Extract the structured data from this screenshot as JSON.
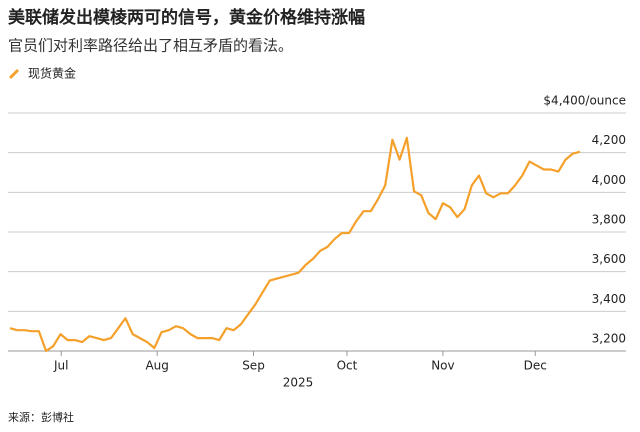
{
  "chart_data": {
    "type": "line",
    "title": "美联储发出模棱两可的信号，黄金价格维持涨幅",
    "subtitle": "官员们对利率路径给出了相互矛盾的看法。",
    "x_label": "2025",
    "source": "来源：彭博社",
    "series": [
      {
        "name": "现货黄金",
        "color": "#f5a02a",
        "values": [
          3315,
          3305,
          3305,
          3300,
          3300,
          3200,
          3225,
          3285,
          3255,
          3255,
          3245,
          3275,
          3265,
          3255,
          3265,
          3315,
          3365,
          3285,
          3265,
          3245,
          3215,
          3295,
          3305,
          3325,
          3315,
          3285,
          3265,
          3265,
          3265,
          3255,
          3315,
          3305,
          3335,
          3385,
          3435,
          3495,
          3555,
          3565,
          3575,
          3585,
          3595,
          3635,
          3665,
          3705,
          3725,
          3765,
          3795,
          3795,
          3855,
          3905,
          3905,
          3965,
          4035,
          4265,
          4165,
          4275,
          4005,
          3985,
          3895,
          3865,
          3945,
          3925,
          3875,
          3915,
          4035,
          4085,
          3995,
          3975,
          3995,
          3995,
          4035,
          4085,
          4155,
          4135,
          4115,
          4115,
          4105,
          4165,
          4195,
          4205
        ]
      }
    ],
    "xticks": [
      {
        "value": 7.1,
        "label": "Jul"
      },
      {
        "value": 20.4,
        "label": "Aug"
      },
      {
        "value": 33.75,
        "label": "Sep"
      },
      {
        "value": 46.7,
        "label": "Oct"
      },
      {
        "value": 60,
        "label": "Nov"
      },
      {
        "value": 72.8,
        "label": "Dec"
      }
    ],
    "ylim": [
      3200,
      4400
    ],
    "yticks": [
      {
        "value": 3200,
        "label": "3,200"
      },
      {
        "value": 3400,
        "label": "3,400"
      },
      {
        "value": 3600,
        "label": "3,600"
      },
      {
        "value": 3800,
        "label": "3,800"
      },
      {
        "value": 4000,
        "label": "4,000"
      },
      {
        "value": 4200,
        "label": "4,200"
      },
      {
        "value": 4400,
        "label": "$4,400/ounce"
      }
    ],
    "grid": true
  }
}
